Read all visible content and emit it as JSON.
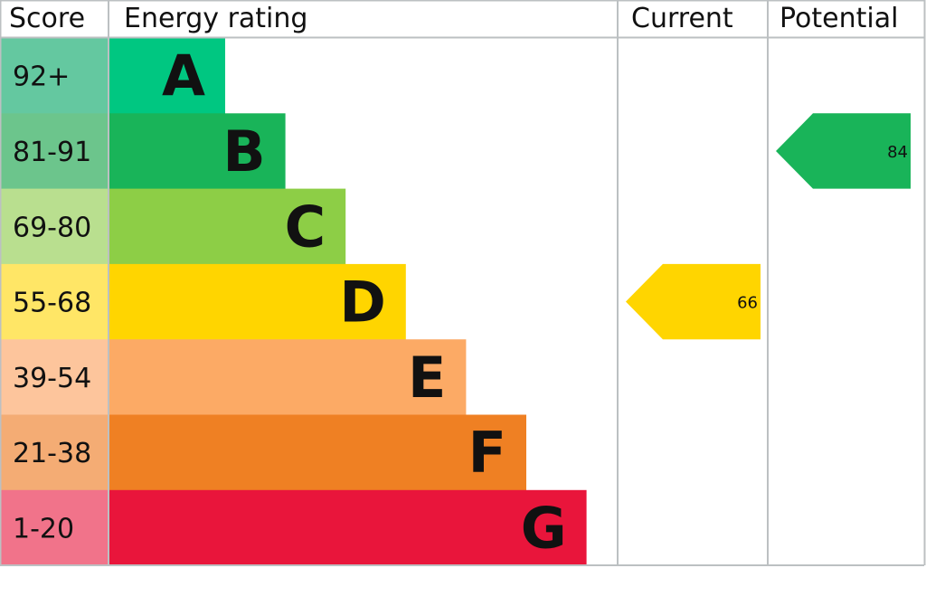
{
  "chart_data": {
    "type": "epc-rating",
    "headers": {
      "score": "Score",
      "rating": "Energy rating",
      "current": "Current",
      "potential": "Potential"
    },
    "bands": [
      {
        "letter": "A",
        "range": "92+",
        "color": "#00c781",
        "light": "#64c8a0"
      },
      {
        "letter": "B",
        "range": "81-91",
        "color": "#19b459",
        "light": "#6cc58c"
      },
      {
        "letter": "C",
        "range": "69-80",
        "color": "#8dce46",
        "light": "#b9df8f"
      },
      {
        "letter": "D",
        "range": "55-68",
        "color": "#ffd500",
        "light": "#ffe666"
      },
      {
        "letter": "E",
        "range": "39-54",
        "color": "#fcaa65",
        "light": "#fdc59c"
      },
      {
        "letter": "F",
        "range": "21-38",
        "color": "#ef8023",
        "light": "#f4ac74"
      },
      {
        "letter": "G",
        "range": "1-20",
        "color": "#e9153b",
        "light": "#f1738a"
      }
    ],
    "current": {
      "value": 66,
      "band": "D",
      "label": "66"
    },
    "potential": {
      "value": 84,
      "band": "B",
      "label": "84"
    }
  }
}
